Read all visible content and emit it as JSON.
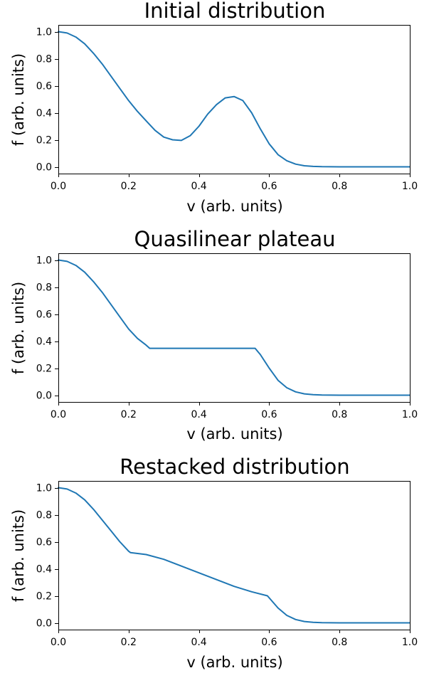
{
  "chart_data": [
    {
      "type": "line",
      "title": "Initial distribution",
      "xlabel": "v (arb. units)",
      "ylabel": "f (arb. units)",
      "xlim": [
        0.0,
        1.0
      ],
      "ylim": [
        -0.05,
        1.05
      ],
      "xticks": [
        "0.0",
        "0.2",
        "0.4",
        "0.6",
        "0.8",
        "1.0"
      ],
      "yticks": [
        "0.0",
        "0.2",
        "0.4",
        "0.6",
        "0.8",
        "1.0"
      ],
      "grid": false,
      "series": [
        {
          "color": "#1f77b4",
          "x": [
            0.0,
            0.025,
            0.05,
            0.075,
            0.1,
            0.125,
            0.15,
            0.175,
            0.2,
            0.225,
            0.25,
            0.275,
            0.3,
            0.325,
            0.35,
            0.375,
            0.4,
            0.425,
            0.45,
            0.475,
            0.5,
            0.525,
            0.55,
            0.575,
            0.6,
            0.625,
            0.65,
            0.675,
            0.7,
            0.725,
            0.75,
            0.8,
            0.85,
            0.9,
            0.95,
            1.0
          ],
          "y": [
            1.0,
            0.99,
            0.96,
            0.91,
            0.84,
            0.76,
            0.67,
            0.58,
            0.49,
            0.41,
            0.34,
            0.27,
            0.22,
            0.2,
            0.195,
            0.23,
            0.3,
            0.39,
            0.46,
            0.51,
            0.52,
            0.49,
            0.4,
            0.28,
            0.17,
            0.09,
            0.045,
            0.02,
            0.008,
            0.003,
            0.001,
            0.0,
            0.0,
            0.0,
            0.0,
            0.0
          ]
        }
      ]
    },
    {
      "type": "line",
      "title": "Quasilinear plateau",
      "xlabel": "v (arb. units)",
      "ylabel": "f (arb. units)",
      "xlim": [
        0.0,
        1.0
      ],
      "ylim": [
        -0.05,
        1.05
      ],
      "xticks": [
        "0.0",
        "0.2",
        "0.4",
        "0.6",
        "0.8",
        "1.0"
      ],
      "yticks": [
        "0.0",
        "0.2",
        "0.4",
        "0.6",
        "0.8",
        "1.0"
      ],
      "grid": false,
      "series": [
        {
          "color": "#1f77b4",
          "x": [
            0.0,
            0.025,
            0.05,
            0.075,
            0.1,
            0.125,
            0.15,
            0.175,
            0.2,
            0.225,
            0.25,
            0.26,
            0.3,
            0.4,
            0.5,
            0.56,
            0.575,
            0.6,
            0.625,
            0.65,
            0.675,
            0.7,
            0.725,
            0.75,
            0.8,
            0.85,
            0.9,
            0.95,
            1.0
          ],
          "y": [
            1.0,
            0.99,
            0.96,
            0.91,
            0.84,
            0.76,
            0.67,
            0.58,
            0.49,
            0.42,
            0.37,
            0.347,
            0.347,
            0.347,
            0.347,
            0.347,
            0.3,
            0.2,
            0.11,
            0.055,
            0.025,
            0.01,
            0.004,
            0.001,
            0.0,
            0.0,
            0.0,
            0.0,
            0.0
          ]
        }
      ]
    },
    {
      "type": "line",
      "title": "Restacked distribution",
      "xlabel": "v (arb. units)",
      "ylabel": "f (arb. units)",
      "xlim": [
        0.0,
        1.0
      ],
      "ylim": [
        -0.05,
        1.05
      ],
      "xticks": [
        "0.0",
        "0.2",
        "0.4",
        "0.6",
        "0.8",
        "1.0"
      ],
      "yticks": [
        "0.0",
        "0.2",
        "0.4",
        "0.6",
        "0.8",
        "1.0"
      ],
      "grid": false,
      "series": [
        {
          "color": "#1f77b4",
          "x": [
            0.0,
            0.025,
            0.05,
            0.075,
            0.1,
            0.125,
            0.15,
            0.175,
            0.2,
            0.205,
            0.25,
            0.3,
            0.35,
            0.4,
            0.45,
            0.5,
            0.55,
            0.595,
            0.6,
            0.625,
            0.65,
            0.675,
            0.7,
            0.725,
            0.75,
            0.8,
            0.85,
            0.9,
            0.95,
            1.0
          ],
          "y": [
            1.0,
            0.99,
            0.96,
            0.91,
            0.84,
            0.76,
            0.68,
            0.6,
            0.53,
            0.52,
            0.505,
            0.47,
            0.42,
            0.37,
            0.32,
            0.27,
            0.23,
            0.2,
            0.185,
            0.11,
            0.055,
            0.025,
            0.01,
            0.004,
            0.001,
            0.0,
            0.0,
            0.0,
            0.0,
            0.0
          ]
        }
      ]
    }
  ]
}
